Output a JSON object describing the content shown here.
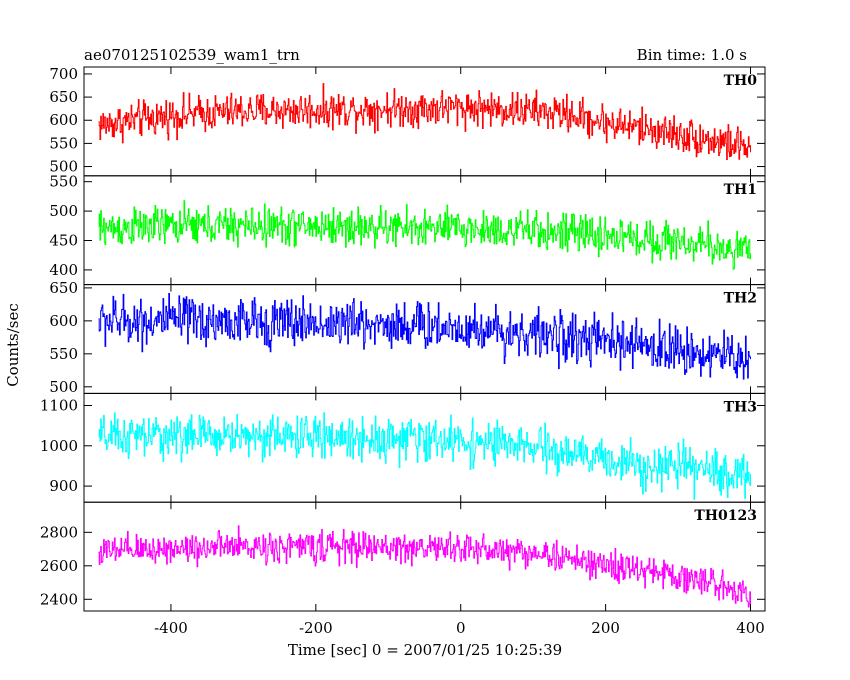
{
  "header": {
    "title": "ae070125102539_wam1_trn",
    "bin_time": "Bin time: 1.0 s"
  },
  "chart_data": {
    "type": "line",
    "xlabel": "Time [sec] 0 = 2007/01/25 10:25:39",
    "ylabel": "Counts/sec",
    "xlim": [
      -520,
      420
    ],
    "xticks": [
      -400,
      -200,
      0,
      200,
      400
    ],
    "x_start": -500,
    "x_end": 400,
    "bin_seconds": 1.0,
    "grid": false,
    "panels": [
      {
        "name": "TH0",
        "color": "#ff0000",
        "ylim": [
          480,
          715
        ],
        "yticks": [
          500,
          550,
          600,
          650,
          700
        ],
        "trend_x": [
          -500,
          -400,
          -300,
          -200,
          -100,
          0,
          100,
          150,
          200,
          300,
          400
        ],
        "trend_y": [
          590,
          610,
          620,
          622,
          625,
          628,
          620,
          612,
          595,
          570,
          540
        ],
        "noise": 30
      },
      {
        "name": "TH1",
        "color": "#00ff00",
        "ylim": [
          375,
          560
        ],
        "yticks": [
          400,
          450,
          500,
          550
        ],
        "trend_x": [
          -500,
          -400,
          -300,
          -200,
          -100,
          0,
          100,
          200,
          300,
          400
        ],
        "trend_y": [
          470,
          475,
          475,
          474,
          472,
          470,
          466,
          458,
          448,
          432
        ],
        "noise": 25
      },
      {
        "name": "TH2",
        "color": "#0000ff",
        "ylim": [
          490,
          655
        ],
        "yticks": [
          500,
          550,
          600,
          650
        ],
        "trend_x": [
          -500,
          -400,
          -300,
          -200,
          -100,
          0,
          100,
          200,
          300,
          400
        ],
        "trend_y": [
          600,
          600,
          598,
          597,
          595,
          590,
          580,
          568,
          556,
          542
        ],
        "noise": 28
      },
      {
        "name": "TH3",
        "color": "#00ffff",
        "ylim": [
          860,
          1130
        ],
        "yticks": [
          900,
          1000,
          1100
        ],
        "trend_x": [
          -500,
          -400,
          -300,
          -200,
          -100,
          0,
          100,
          200,
          300,
          400
        ],
        "trend_y": [
          1020,
          1025,
          1025,
          1022,
          1018,
          1012,
          995,
          965,
          945,
          925
        ],
        "noise": 40
      },
      {
        "name": "TH0123",
        "color": "#ff00ff",
        "ylim": [
          2330,
          2980
        ],
        "yticks": [
          2400,
          2600,
          2800
        ],
        "trend_x": [
          -500,
          -400,
          -300,
          -200,
          -100,
          0,
          100,
          200,
          300,
          400
        ],
        "trend_y": [
          2680,
          2705,
          2715,
          2715,
          2710,
          2705,
          2680,
          2600,
          2540,
          2440
        ],
        "noise": 70
      }
    ]
  }
}
